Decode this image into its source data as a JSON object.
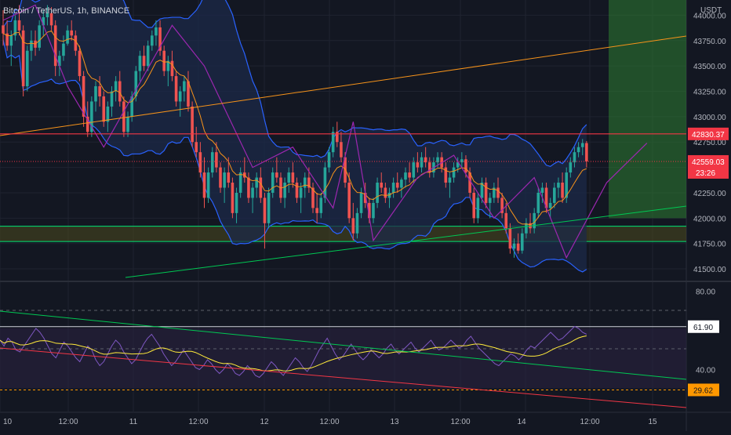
{
  "title": "Bitcoin / TetherUS, 1h, BINANCE",
  "currency": "USDT",
  "colors": {
    "bg": "#131722",
    "grid": "#1f2330",
    "up": "#26a69a",
    "down": "#ef5350",
    "bb_line": "#2962ff",
    "bb_fill": "#1c2a48",
    "ma_orange": "#f7931a",
    "zigzag": "#9c27b0",
    "rsi_line": "#7e57c2",
    "rsi_ma": "#ffeb3b",
    "axis_text": "#b2b5be",
    "resistance": "#f23645",
    "green_zone": "#2e7d32"
  },
  "price_axis": {
    "ticks": [
      "44000.00",
      "43750.00",
      "43500.00",
      "43250.00",
      "43000.00",
      "42750.00",
      "42500.00",
      "42250.00",
      "42000.00",
      "41750.00",
      "41500.00"
    ],
    "resistance_label": "42830.37",
    "current_label": "42559.03",
    "countdown": "23:26"
  },
  "rsi_axis": {
    "ticks": [
      "80.00",
      "40.00"
    ],
    "upper_label": "61.90",
    "lower_label": "29.62"
  },
  "time_axis": {
    "ticks": [
      "10",
      "12:00",
      "11",
      "12:00",
      "12",
      "12:00",
      "13",
      "12:00",
      "14",
      "12:00",
      "15"
    ]
  },
  "chart_data": {
    "type": "candlestick",
    "symbol": "Bitcoin / TetherUS",
    "interval": "1h",
    "exchange": "BINANCE",
    "y_range": [
      41400,
      44150
    ],
    "resistance_level": 42830.37,
    "current_price": 42559.03,
    "support_zone": [
      41770,
      41920
    ],
    "zigzag": [
      [
        0,
        43950
      ],
      [
        8,
        44100
      ],
      [
        16,
        43300
      ],
      [
        25,
        42700
      ],
      [
        42,
        43900
      ],
      [
        50,
        43500
      ],
      [
        62,
        42500
      ],
      [
        72,
        42700
      ],
      [
        82,
        42100
      ],
      [
        87,
        42950
      ],
      [
        92,
        41780
      ],
      [
        103,
        42400
      ],
      [
        112,
        42620
      ],
      [
        122,
        42000
      ],
      [
        132,
        42400
      ],
      [
        140,
        41610
      ],
      [
        150,
        42350
      ],
      [
        160,
        42740
      ]
    ],
    "rsi": {
      "overbought": 61.9,
      "oversold": 29.62,
      "values": [
        55,
        52,
        56,
        54,
        50,
        49,
        52,
        55,
        58,
        61,
        59,
        56,
        52,
        48,
        46,
        50,
        54,
        52,
        49,
        46,
        44,
        48,
        52,
        50,
        45,
        42,
        44,
        48,
        52,
        55,
        53,
        49,
        46,
        43,
        45,
        49,
        53,
        56,
        58,
        55,
        52,
        48,
        45,
        42,
        44,
        47,
        50,
        47,
        44,
        41,
        40,
        42,
        45,
        43,
        40,
        38,
        40,
        43,
        41,
        38,
        37,
        39,
        42,
        40,
        37,
        36,
        38,
        41,
        44,
        42,
        39,
        37,
        40,
        43,
        46,
        44,
        41,
        39,
        42,
        46,
        50,
        53,
        56,
        52,
        48,
        45,
        47,
        50,
        53,
        50,
        47,
        45,
        47,
        50,
        48,
        46,
        48,
        51,
        53,
        50,
        48,
        50,
        52,
        54,
        51,
        49,
        51,
        53,
        55,
        52,
        50,
        51,
        53,
        55,
        53,
        51,
        52,
        55,
        57,
        54,
        51,
        49,
        47,
        45,
        43,
        42,
        44,
        46,
        48,
        47,
        45,
        47,
        50,
        52,
        51,
        53,
        55,
        57,
        59,
        57,
        55,
        56,
        58,
        60,
        62,
        61,
        59,
        58
      ]
    },
    "ohlc": [
      [
        43900,
        44050,
        43700,
        43820
      ],
      [
        43820,
        43950,
        43650,
        43700
      ],
      [
        43700,
        43850,
        43500,
        43800
      ],
      [
        43800,
        44000,
        43750,
        43950
      ],
      [
        43950,
        44100,
        43800,
        43850
      ],
      [
        43850,
        43900,
        43200,
        43300
      ],
      [
        43300,
        43700,
        43250,
        43650
      ],
      [
        43650,
        43850,
        43550,
        43750
      ],
      [
        43750,
        43850,
        43600,
        43680
      ],
      [
        43680,
        43950,
        43650,
        43900
      ],
      [
        43900,
        44050,
        43800,
        43980
      ],
      [
        43980,
        44100,
        43900,
        44020
      ],
      [
        44020,
        44080,
        43850,
        43900
      ],
      [
        43900,
        43950,
        43400,
        43500
      ],
      [
        43500,
        43650,
        43400,
        43600
      ],
      [
        43600,
        43800,
        43550,
        43720
      ],
      [
        43720,
        43900,
        43700,
        43850
      ],
      [
        43850,
        43950,
        43750,
        43800
      ],
      [
        43800,
        43850,
        43600,
        43650
      ],
      [
        43650,
        43700,
        43350,
        43400
      ],
      [
        43400,
        43450,
        42900,
        43000
      ],
      [
        43000,
        43150,
        42800,
        42850
      ],
      [
        42850,
        43200,
        42800,
        43150
      ],
      [
        43150,
        43350,
        43050,
        43300
      ],
      [
        43300,
        43400,
        43100,
        43200
      ],
      [
        43200,
        43250,
        42900,
        42950
      ],
      [
        42950,
        43150,
        42850,
        43100
      ],
      [
        43100,
        43300,
        43000,
        43250
      ],
      [
        43250,
        43400,
        43150,
        43350
      ],
      [
        43350,
        43450,
        43100,
        43150
      ],
      [
        43150,
        43200,
        42800,
        42850
      ],
      [
        42850,
        43050,
        42800,
        43000
      ],
      [
        43000,
        43250,
        42950,
        43200
      ],
      [
        43200,
        43500,
        43150,
        43450
      ],
      [
        43450,
        43650,
        43350,
        43600
      ],
      [
        43600,
        43700,
        43450,
        43500
      ],
      [
        43500,
        43750,
        43450,
        43700
      ],
      [
        43700,
        43850,
        43650,
        43800
      ],
      [
        43800,
        43950,
        43700,
        43880
      ],
      [
        43880,
        43950,
        43600,
        43650
      ],
      [
        43650,
        43700,
        43400,
        43450
      ],
      [
        43450,
        43600,
        43300,
        43550
      ],
      [
        43550,
        43650,
        43350,
        43400
      ],
      [
        43400,
        43450,
        43100,
        43150
      ],
      [
        43150,
        43300,
        43000,
        43250
      ],
      [
        43250,
        43400,
        43150,
        43350
      ],
      [
        43350,
        43450,
        43050,
        43100
      ],
      [
        43100,
        43150,
        42700,
        42750
      ],
      [
        42750,
        42900,
        42600,
        42650
      ],
      [
        42650,
        42750,
        42400,
        42450
      ],
      [
        42450,
        42600,
        42100,
        42200
      ],
      [
        42200,
        42500,
        42150,
        42450
      ],
      [
        42450,
        42700,
        42400,
        42650
      ],
      [
        42650,
        42750,
        42450,
        42500
      ],
      [
        42500,
        42550,
        42250,
        42300
      ],
      [
        42300,
        42500,
        42150,
        42450
      ],
      [
        42450,
        42600,
        42300,
        42350
      ],
      [
        42350,
        42400,
        42000,
        42050
      ],
      [
        42050,
        42300,
        41950,
        42250
      ],
      [
        42250,
        42500,
        42200,
        42450
      ],
      [
        42450,
        42600,
        42350,
        42400
      ],
      [
        42400,
        42450,
        42150,
        42200
      ],
      [
        42200,
        42350,
        42050,
        42300
      ],
      [
        42300,
        42450,
        42200,
        42400
      ],
      [
        42400,
        42500,
        42150,
        42200
      ],
      [
        42200,
        42250,
        41700,
        41950
      ],
      [
        41950,
        42300,
        41900,
        42250
      ],
      [
        42250,
        42500,
        42200,
        42450
      ],
      [
        42450,
        42600,
        42350,
        42400
      ],
      [
        42400,
        42450,
        42150,
        42200
      ],
      [
        42200,
        42400,
        42100,
        42350
      ],
      [
        42350,
        42500,
        42250,
        42450
      ],
      [
        42450,
        42550,
        42300,
        42350
      ],
      [
        42350,
        42400,
        42150,
        42200
      ],
      [
        42200,
        42350,
        42050,
        42300
      ],
      [
        42300,
        42450,
        42200,
        42400
      ],
      [
        42400,
        42500,
        42250,
        42300
      ],
      [
        42300,
        42350,
        42050,
        42100
      ],
      [
        42100,
        42250,
        41950,
        42050
      ],
      [
        42050,
        42250,
        42000,
        42200
      ],
      [
        42200,
        42550,
        42150,
        42500
      ],
      [
        42500,
        42700,
        42450,
        42650
      ],
      [
        42650,
        42900,
        42600,
        42850
      ],
      [
        42850,
        42950,
        42700,
        42750
      ],
      [
        42750,
        42850,
        42550,
        42600
      ],
      [
        42600,
        42650,
        42300,
        42350
      ],
      [
        42350,
        42450,
        41950,
        42000
      ],
      [
        42000,
        42150,
        41780,
        41850
      ],
      [
        41850,
        42100,
        41800,
        42050
      ],
      [
        42050,
        42300,
        42000,
        42250
      ],
      [
        42250,
        42350,
        42100,
        42150
      ],
      [
        42150,
        42200,
        41950,
        42000
      ],
      [
        42000,
        42200,
        41950,
        42150
      ],
      [
        42150,
        42400,
        42100,
        42350
      ],
      [
        42350,
        42450,
        42250,
        42300
      ],
      [
        42300,
        42350,
        42150,
        42200
      ],
      [
        42200,
        42300,
        42100,
        42250
      ],
      [
        42250,
        42400,
        42200,
        42350
      ],
      [
        42350,
        42450,
        42250,
        42300
      ],
      [
        42300,
        42400,
        42200,
        42380
      ],
      [
        42380,
        42500,
        42300,
        42450
      ],
      [
        42450,
        42550,
        42350,
        42400
      ],
      [
        42400,
        42600,
        42350,
        42550
      ],
      [
        42550,
        42650,
        42450,
        42500
      ],
      [
        42500,
        42650,
        42450,
        42600
      ],
      [
        42600,
        42700,
        42500,
        42550
      ],
      [
        42550,
        42600,
        42400,
        42450
      ],
      [
        42450,
        42600,
        42400,
        42550
      ],
      [
        42550,
        42650,
        42500,
        42600
      ],
      [
        42600,
        42650,
        42450,
        42500
      ],
      [
        42500,
        42550,
        42300,
        42350
      ],
      [
        42350,
        42450,
        42200,
        42400
      ],
      [
        42400,
        42550,
        42350,
        42500
      ],
      [
        42500,
        42600,
        42450,
        42550
      ],
      [
        42550,
        42650,
        42500,
        42580
      ],
      [
        42580,
        42620,
        42400,
        42450
      ],
      [
        42450,
        42500,
        42200,
        42250
      ],
      [
        42250,
        42300,
        41950,
        42000
      ],
      [
        42000,
        42250,
        41950,
        42200
      ],
      [
        42200,
        42400,
        42150,
        42350
      ],
      [
        42350,
        42400,
        42100,
        42150
      ],
      [
        42150,
        42250,
        42000,
        42200
      ],
      [
        42200,
        42350,
        42150,
        42300
      ],
      [
        42300,
        42400,
        42150,
        42200
      ],
      [
        42200,
        42250,
        42000,
        42050
      ],
      [
        42050,
        42150,
        41850,
        41900
      ],
      [
        41900,
        41950,
        41650,
        41700
      ],
      [
        41700,
        41800,
        41610,
        41750
      ],
      [
        41750,
        41850,
        41650,
        41680
      ],
      [
        41680,
        41900,
        41650,
        41850
      ],
      [
        41850,
        42000,
        41800,
        41950
      ],
      [
        41950,
        42050,
        41850,
        41900
      ],
      [
        41900,
        42100,
        41850,
        42050
      ],
      [
        42050,
        42300,
        42000,
        42250
      ],
      [
        42250,
        42350,
        42150,
        42300
      ],
      [
        42300,
        42350,
        42050,
        42100
      ],
      [
        42100,
        42200,
        42000,
        42150
      ],
      [
        42150,
        42350,
        42100,
        42300
      ],
      [
        42300,
        42400,
        42200,
        42350
      ],
      [
        42350,
        42450,
        42150,
        42200
      ],
      [
        42200,
        42500,
        42150,
        42450
      ],
      [
        42450,
        42600,
        42400,
        42550
      ],
      [
        42550,
        42700,
        42500,
        42650
      ],
      [
        42650,
        42750,
        42600,
        42700
      ],
      [
        42700,
        42780,
        42620,
        42740
      ],
      [
        42740,
        42760,
        42500,
        42559
      ]
    ]
  }
}
